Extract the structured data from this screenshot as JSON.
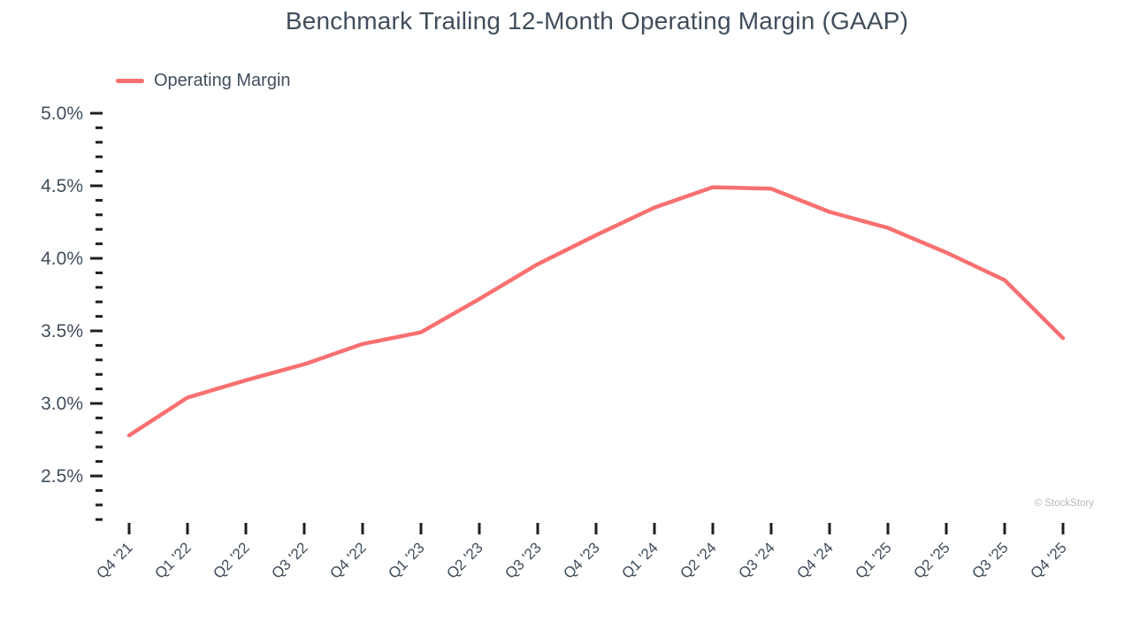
{
  "watermark": "© StockStory",
  "colors": {
    "line": "#F87070",
    "text": "#414D5C",
    "tick": "#1F1F1F",
    "watermark": "#B3B9BF",
    "background": "#FFFFFF"
  },
  "chart_data": {
    "type": "line",
    "title": "Benchmark Trailing 12-Month Operating Margin (GAAP)",
    "categories": [
      "Q4 '21",
      "Q1 '22",
      "Q2 '22",
      "Q3 '22",
      "Q4 '22",
      "Q1 '23",
      "Q2 '23",
      "Q3 '23",
      "Q4 '23",
      "Q1 '24",
      "Q2 '24",
      "Q3 '24",
      "Q4 '24",
      "Q1 '25",
      "Q2 '25",
      "Q3 '25",
      "Q4 '25"
    ],
    "series": [
      {
        "name": "Operating Margin",
        "color": "#F87070",
        "values": [
          2.78,
          3.04,
          3.16,
          3.27,
          3.41,
          3.49,
          3.72,
          3.96,
          4.16,
          4.35,
          4.49,
          4.48,
          4.32,
          4.21,
          4.04,
          3.85,
          3.45
        ]
      }
    ],
    "unit": "%",
    "ylabel": "",
    "xlabel": "",
    "y_axis": {
      "major_ticks": [
        5.0,
        4.5,
        4.0,
        3.5,
        3.0,
        2.5
      ],
      "major_labels": [
        "5.0%",
        "4.5%",
        "4.0%",
        "3.5%",
        "3.0%",
        "2.5%"
      ],
      "minor_step": 0.1,
      "axis_min": 2.2,
      "axis_max": 5.0
    },
    "x_axis": {
      "label_rotation": -45,
      "tick_count": 17
    },
    "legend_position": "top-left",
    "grid": false
  }
}
